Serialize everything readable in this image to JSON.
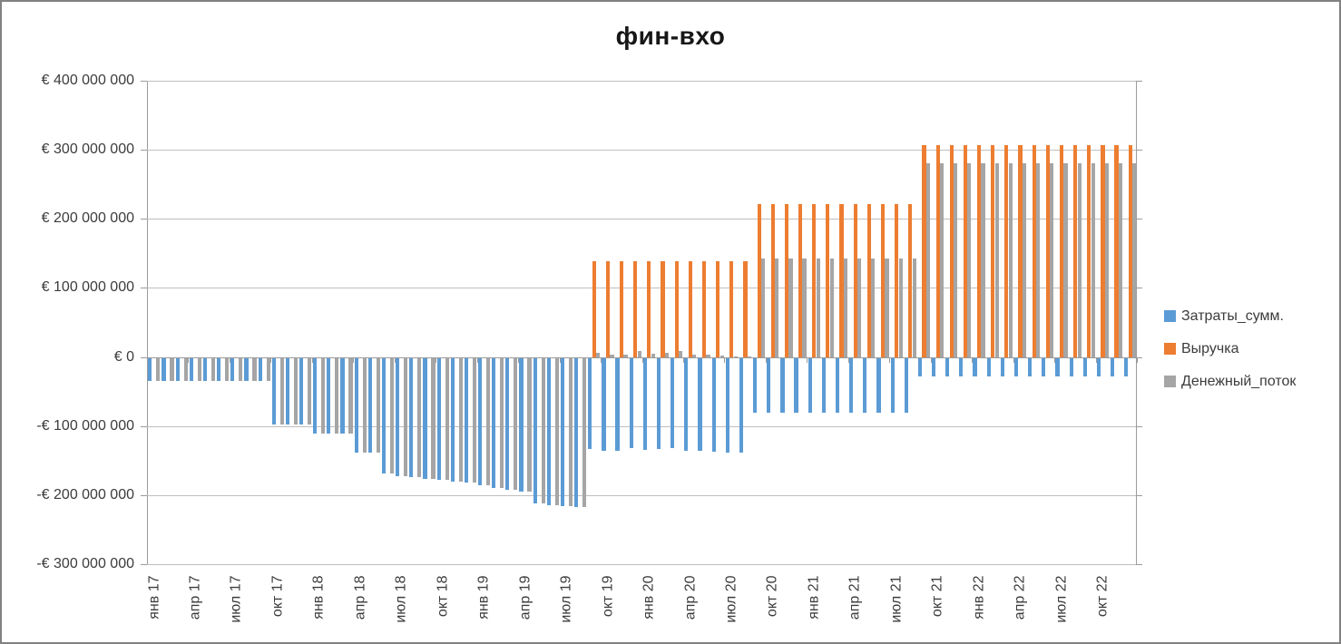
{
  "chart_data": {
    "type": "bar",
    "title": "фин-вхо",
    "currency": "EUR",
    "unit_of_values": "millions of euro, estimated from bar heights",
    "grid": true,
    "legend_position": "right",
    "n_months": 72,
    "months_per_x_label": 3,
    "ylim_millions": [
      -300,
      400
    ],
    "y_tick_labels_top_to_bottom": [
      "€ 400 000 000",
      "€ 300 000 000",
      "€ 200 000 000",
      "€ 100 000 000",
      "€ 0",
      "-€ 100 000 000",
      "-€ 200 000 000",
      "-€ 300 000 000"
    ],
    "x_tick_labels": [
      "янв 17",
      "апр 17",
      "июл 17",
      "окт 17",
      "янв 18",
      "апр 18",
      "июл 18",
      "окт 18",
      "янв 19",
      "апр 19",
      "июл 19",
      "окт 19",
      "янв 20",
      "апр 20",
      "июл 20",
      "окт 20",
      "янв 21",
      "апр 21",
      "июл 21",
      "окт 21",
      "янв 22",
      "апр 22",
      "июл 22",
      "окт 22"
    ],
    "series": [
      {
        "name": "Затраты_сумм.",
        "color": "#5B9BD5",
        "values_eur_millions": [
          -33,
          -33,
          -33,
          -33,
          -33,
          -33,
          -33,
          -33,
          -33,
          -96,
          -96,
          -96,
          -109,
          -109,
          -109,
          -137,
          -137,
          -168,
          -171,
          -173,
          -175,
          -177,
          -179,
          -181,
          -185,
          -188,
          -191,
          -194,
          -211,
          -213,
          -214,
          -216,
          -132,
          -134,
          -134,
          -130,
          -133,
          -132,
          -130,
          -135,
          -135,
          -136,
          -137,
          -137,
          -79,
          -79,
          -79,
          -79,
          -79,
          -79,
          -79,
          -79,
          -79,
          -79,
          -79,
          -79,
          -27,
          -27,
          -27,
          -27,
          -27,
          -27,
          -27,
          -27,
          -27,
          -27,
          -27,
          -27,
          -27,
          -27,
          -27,
          -27
        ]
      },
      {
        "name": "Выручка",
        "color": "#ED7D31",
        "values_eur_millions": [
          0,
          0,
          0,
          0,
          0,
          0,
          0,
          0,
          0,
          0,
          0,
          0,
          0,
          0,
          0,
          0,
          0,
          0,
          0,
          0,
          0,
          0,
          0,
          0,
          0,
          0,
          0,
          0,
          0,
          0,
          0,
          0,
          138,
          138,
          138,
          138,
          138,
          138,
          138,
          138,
          138,
          138,
          138,
          138,
          221,
          221,
          221,
          221,
          221,
          221,
          221,
          221,
          221,
          221,
          221,
          221,
          307,
          307,
          307,
          307,
          307,
          307,
          307,
          307,
          307,
          307,
          307,
          307,
          307,
          307,
          307,
          307
        ]
      },
      {
        "name": "Денежный_поток",
        "color": "#A5A5A5",
        "values_eur_millions": [
          -33,
          -33,
          -33,
          -33,
          -33,
          -33,
          -33,
          -33,
          -33,
          -96,
          -96,
          -96,
          -109,
          -109,
          -109,
          -137,
          -137,
          -168,
          -171,
          -173,
          -175,
          -177,
          -179,
          -181,
          -185,
          -188,
          -191,
          -194,
          -211,
          -213,
          -214,
          -216,
          6,
          4,
          4,
          8,
          5,
          6,
          8,
          3,
          3,
          2,
          1,
          1,
          142,
          142,
          142,
          142,
          142,
          142,
          142,
          142,
          142,
          142,
          142,
          142,
          280,
          280,
          280,
          280,
          280,
          280,
          280,
          280,
          280,
          280,
          280,
          280,
          280,
          280,
          280,
          280
        ]
      }
    ]
  },
  "colors": {
    "gridline": "#BFBFBF",
    "axis": "#9B9B9B",
    "axis_text": "#3C3C3C",
    "title_text": "#171717",
    "chart_border": "#818181",
    "background": "#FFFFFF"
  }
}
